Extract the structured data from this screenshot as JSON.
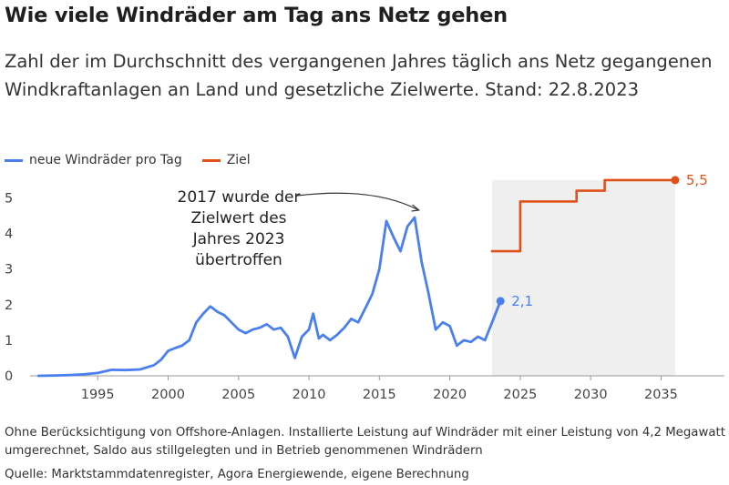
{
  "header": {
    "title": "Wie viele Windräder am Tag ans Netz gehen",
    "subtitle": "Zahl der im Durchschnitt des vergangenen Jahres täglich ans Netz gegangenen Windkraftanlagen an Land und gesetzliche Zielwerte. Stand: 22.8.2023"
  },
  "footer": {
    "note": "Ohne Berücksichtigung von Offshore-Anlagen. Installierte Leistung auf Windräder mit einer Leistung von 4,2 Megawatt umgerechnet, Saldo aus stillgelegten und in Betrieb genommenen Windrädern",
    "source": "Quelle: Marktstammdatenregister, Agora Energiewende, eigene Berechnung"
  },
  "colors": {
    "actual": "#4a7ff0",
    "target": "#e0501a",
    "shade": "#efefef"
  },
  "chart_data": {
    "type": "line",
    "xlim": [
      1990.5,
      2037
    ],
    "ylim": [
      0,
      5.6
    ],
    "x_ticks": [
      1995,
      2000,
      2005,
      2010,
      2015,
      2020,
      2025,
      2030,
      2035
    ],
    "x_tick_labels": [
      "1995",
      "2000",
      "2005",
      "2010",
      "2015",
      "2020",
      "2025",
      "2030",
      "2035"
    ],
    "y_ticks": [
      0,
      1,
      2,
      3,
      4,
      5
    ],
    "y_tick_labels": [
      "0",
      "1",
      "2",
      "3",
      "4",
      "5"
    ],
    "grid": false,
    "legend_position": "top-left",
    "shaded_region": [
      2023,
      2036
    ],
    "series": [
      {
        "name": "neue Windräder pro Tag",
        "color": "#4a7ff0",
        "x": [
          1990.8,
          1992,
          1993,
          1994,
          1995,
          1996,
          1997,
          1998,
          1999,
          1999.5,
          2000,
          2000.5,
          2001,
          2001.5,
          2002,
          2002.5,
          2003,
          2003.5,
          2004,
          2004.5,
          2005,
          2005.5,
          2006,
          2006.5,
          2007,
          2007.5,
          2008,
          2008.5,
          2009,
          2009.5,
          2010,
          2010.3,
          2010.7,
          2011,
          2011.5,
          2012,
          2012.5,
          2013,
          2013.5,
          2014,
          2014.5,
          2015,
          2015.5,
          2016,
          2016.5,
          2017,
          2017.5,
          2018,
          2018.5,
          2019,
          2019.5,
          2020,
          2020.5,
          2021,
          2021.5,
          2022,
          2022.5,
          2023,
          2023.6
        ],
        "y": [
          0,
          0.01,
          0.02,
          0.04,
          0.08,
          0.17,
          0.16,
          0.18,
          0.3,
          0.45,
          0.7,
          0.78,
          0.85,
          1.0,
          1.5,
          1.75,
          1.95,
          1.8,
          1.7,
          1.5,
          1.3,
          1.2,
          1.3,
          1.35,
          1.45,
          1.3,
          1.35,
          1.1,
          0.5,
          1.1,
          1.3,
          1.75,
          1.05,
          1.15,
          1.0,
          1.15,
          1.35,
          1.6,
          1.5,
          1.9,
          2.3,
          3.0,
          4.35,
          3.9,
          3.5,
          4.2,
          4.45,
          3.2,
          2.3,
          1.3,
          1.5,
          1.4,
          0.85,
          1.0,
          0.95,
          1.1,
          1.0,
          1.5,
          2.1
        ]
      },
      {
        "name": "Ziel",
        "color": "#e0501a",
        "x": [
          2023,
          2025,
          2025,
          2029,
          2029,
          2031,
          2031,
          2036
        ],
        "y": [
          3.5,
          3.5,
          4.9,
          4.9,
          5.2,
          5.2,
          5.5,
          5.5
        ]
      }
    ],
    "end_labels": [
      {
        "series": 0,
        "text": "2,1"
      },
      {
        "series": 1,
        "text": "5,5"
      }
    ],
    "annotation": {
      "lines": [
        "2017 wurde der",
        "Zielwert des",
        "Jahres 2023",
        "übertroffen"
      ],
      "target": [
        2017.8,
        4.45
      ]
    }
  }
}
